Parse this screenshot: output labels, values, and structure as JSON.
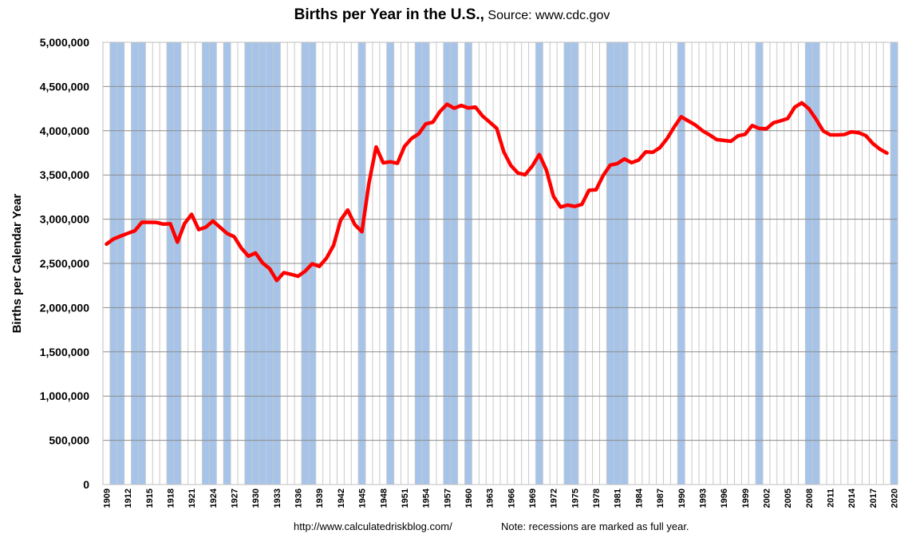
{
  "chart_data": {
    "type": "line",
    "title": "Births per Year in the U.S.,",
    "subtitle": "Source: www.cdc.gov",
    "xlabel": "",
    "ylabel": "Births per Calendar Year",
    "xlim": [
      1909,
      2020
    ],
    "ylim": [
      0,
      5000000
    ],
    "yticks": [
      "0",
      "500,000",
      "1,000,000",
      "1,500,000",
      "2,000,000",
      "2,500,000",
      "3,000,000",
      "3,500,000",
      "4,000,000",
      "4,500,000",
      "5,000,000"
    ],
    "xticks": [
      "1909",
      "1912",
      "1915",
      "1918",
      "1921",
      "1924",
      "1927",
      "1930",
      "1933",
      "1936",
      "1939",
      "1942",
      "1945",
      "1948",
      "1951",
      "1954",
      "1957",
      "1960",
      "1963",
      "1966",
      "1969",
      "1972",
      "1975",
      "1978",
      "1981",
      "1984",
      "1987",
      "1990",
      "1993",
      "1996",
      "1999",
      "2002",
      "2005",
      "2008",
      "2011",
      "2014",
      "2017",
      "2020"
    ],
    "grid": true,
    "line_color": "#ff0000",
    "recession_color": "#a6c4ea",
    "recession_years": [
      1910,
      1911,
      1913,
      1914,
      1918,
      1919,
      1923,
      1924,
      1926,
      1929,
      1930,
      1931,
      1932,
      1933,
      1937,
      1938,
      1945,
      1949,
      1953,
      1954,
      1957,
      1958,
      1960,
      1970,
      1974,
      1975,
      1980,
      1981,
      1982,
      1990,
      2001,
      2008,
      2009,
      2020
    ],
    "series": [
      {
        "values": [
          [
            1909,
            2718000
          ],
          [
            1910,
            2777000
          ],
          [
            1911,
            2809000
          ],
          [
            1912,
            2840000
          ],
          [
            1913,
            2869000
          ],
          [
            1914,
            2966000
          ],
          [
            1915,
            2965000
          ],
          [
            1916,
            2964000
          ],
          [
            1917,
            2944000
          ],
          [
            1918,
            2948000
          ],
          [
            1919,
            2740000
          ],
          [
            1920,
            2950000
          ],
          [
            1921,
            3055000
          ],
          [
            1922,
            2882000
          ],
          [
            1923,
            2910000
          ],
          [
            1924,
            2979000
          ],
          [
            1925,
            2909000
          ],
          [
            1926,
            2839000
          ],
          [
            1927,
            2802000
          ],
          [
            1928,
            2674000
          ],
          [
            1929,
            2582000
          ],
          [
            1930,
            2618000
          ],
          [
            1931,
            2506000
          ],
          [
            1932,
            2440000
          ],
          [
            1933,
            2307000
          ],
          [
            1934,
            2396000
          ],
          [
            1935,
            2377000
          ],
          [
            1936,
            2355000
          ],
          [
            1937,
            2413000
          ],
          [
            1938,
            2496000
          ],
          [
            1939,
            2466000
          ],
          [
            1940,
            2559000
          ],
          [
            1941,
            2703000
          ],
          [
            1942,
            2989000
          ],
          [
            1943,
            3104000
          ],
          [
            1944,
            2939000
          ],
          [
            1945,
            2858000
          ],
          [
            1946,
            3411000
          ],
          [
            1947,
            3817000
          ],
          [
            1948,
            3637000
          ],
          [
            1949,
            3649000
          ],
          [
            1950,
            3632000
          ],
          [
            1951,
            3823000
          ],
          [
            1952,
            3913000
          ],
          [
            1953,
            3965000
          ],
          [
            1954,
            4078000
          ],
          [
            1955,
            4097000
          ],
          [
            1956,
            4218000
          ],
          [
            1957,
            4300000
          ],
          [
            1958,
            4255000
          ],
          [
            1959,
            4286000
          ],
          [
            1960,
            4258000
          ],
          [
            1961,
            4268000
          ],
          [
            1962,
            4167000
          ],
          [
            1963,
            4098000
          ],
          [
            1964,
            4027000
          ],
          [
            1965,
            3760000
          ],
          [
            1966,
            3606000
          ],
          [
            1967,
            3521000
          ],
          [
            1968,
            3502000
          ],
          [
            1969,
            3600000
          ],
          [
            1970,
            3731000
          ],
          [
            1971,
            3556000
          ],
          [
            1972,
            3258000
          ],
          [
            1973,
            3137000
          ],
          [
            1974,
            3160000
          ],
          [
            1975,
            3144000
          ],
          [
            1976,
            3168000
          ],
          [
            1977,
            3327000
          ],
          [
            1978,
            3333000
          ],
          [
            1979,
            3494000
          ],
          [
            1980,
            3612000
          ],
          [
            1981,
            3629000
          ],
          [
            1982,
            3681000
          ],
          [
            1983,
            3639000
          ],
          [
            1984,
            3669000
          ],
          [
            1985,
            3761000
          ],
          [
            1986,
            3757000
          ],
          [
            1987,
            3809000
          ],
          [
            1988,
            3910000
          ],
          [
            1989,
            4041000
          ],
          [
            1990,
            4158000
          ],
          [
            1991,
            4111000
          ],
          [
            1992,
            4065000
          ],
          [
            1993,
            4000000
          ],
          [
            1994,
            3953000
          ],
          [
            1995,
            3900000
          ],
          [
            1996,
            3891000
          ],
          [
            1997,
            3881000
          ],
          [
            1998,
            3942000
          ],
          [
            1999,
            3959000
          ],
          [
            2000,
            4059000
          ],
          [
            2001,
            4026000
          ],
          [
            2002,
            4022000
          ],
          [
            2003,
            4090000
          ],
          [
            2004,
            4112000
          ],
          [
            2005,
            4138000
          ],
          [
            2006,
            4266000
          ],
          [
            2007,
            4316000
          ],
          [
            2008,
            4248000
          ],
          [
            2009,
            4131000
          ],
          [
            2010,
            3999000
          ],
          [
            2011,
            3954000
          ],
          [
            2012,
            3953000
          ],
          [
            2013,
            3957000
          ],
          [
            2014,
            3988000
          ],
          [
            2015,
            3978000
          ],
          [
            2016,
            3946000
          ],
          [
            2017,
            3856000
          ],
          [
            2018,
            3792000
          ],
          [
            2019,
            3747000
          ]
        ]
      }
    ]
  },
  "footer": {
    "url": "http://www.calculatedriskblog.com/",
    "note": "Note: recessions are marked as full year."
  }
}
